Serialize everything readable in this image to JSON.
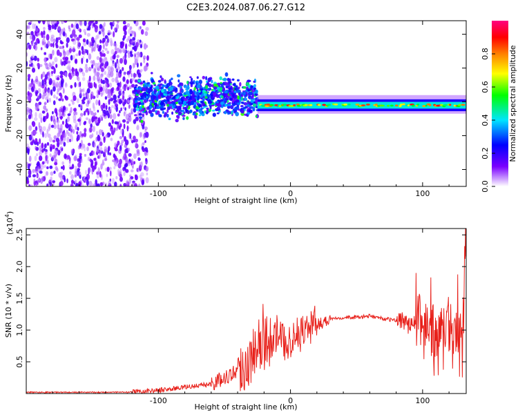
{
  "title": "C2E3.2024.087.06.27.G12",
  "chart_data": [
    {
      "type": "heatmap",
      "xlabel": "Height of straight line (km)",
      "ylabel": "Frequency (Hz)",
      "xlim": [
        -200,
        133
      ],
      "ylim": [
        -50,
        48
      ],
      "x_ticks": [
        "-100",
        "0",
        "100"
      ],
      "y_ticks": [
        "-40",
        "-20",
        "0",
        "20",
        "40"
      ],
      "colorbar": {
        "label": "Normalized spectral amplitude",
        "range": [
          0,
          1
        ],
        "ticks": [
          "0.0",
          "0.2",
          "0.4",
          "0.6",
          "0.8"
        ],
        "colors": [
          "#ffffff",
          "#7a00ff",
          "#0000ff",
          "#00e5ff",
          "#00ff00",
          "#ffff00",
          "#ff8000",
          "#ff0000",
          "#ff0080"
        ]
      },
      "regions": [
        {
          "x_range": [
            -200,
            -118
          ],
          "freq_range": [
            -50,
            48
          ],
          "amplitude": 0.05,
          "note_level": "scattered"
        },
        {
          "x_range": [
            -118,
            -25
          ],
          "center_freq": 2,
          "spread": 10,
          "amplitude": 0.25
        },
        {
          "x_range": [
            -25,
            133
          ],
          "center_freq": -2,
          "spread": 2,
          "amplitude": 0.85
        }
      ]
    },
    {
      "type": "line",
      "xlabel": "Height of straight line (km)",
      "ylabel": "SNR (10 * v/v)",
      "y_scale_label": "(x10",
      "y_scale_exp": "4",
      "xlim": [
        -200,
        133
      ],
      "ylim": [
        0,
        2.6
      ],
      "x_ticks": [
        "-100",
        "0",
        "100"
      ],
      "y_ticks": [
        "0.5",
        "1.0",
        "1.5",
        "2.0",
        "2.5"
      ],
      "color": "#e8201a",
      "series": [
        {
          "x": [
            -200,
            -180,
            -160,
            -140,
            -120,
            -100,
            -80,
            -60,
            -45,
            -35,
            -30,
            -25,
            -20,
            -15,
            -10,
            -5,
            0,
            5,
            10,
            15,
            20,
            25,
            30,
            40,
            50,
            60,
            70,
            80,
            85,
            90,
            95,
            100,
            105,
            110,
            115,
            120,
            125,
            130,
            133
          ],
          "y": [
            0.02,
            0.02,
            0.02,
            0.02,
            0.02,
            0.05,
            0.1,
            0.15,
            0.3,
            0.45,
            0.5,
            0.75,
            0.8,
            0.85,
            0.95,
            0.8,
            0.85,
            0.9,
            1.0,
            1.05,
            1.1,
            1.12,
            1.18,
            1.2,
            1.2,
            1.22,
            1.18,
            1.15,
            1.18,
            1.05,
            1.1,
            0.95,
            1.05,
            0.75,
            0.9,
            1.0,
            0.85,
            0.7,
            2.6
          ]
        }
      ]
    }
  ]
}
